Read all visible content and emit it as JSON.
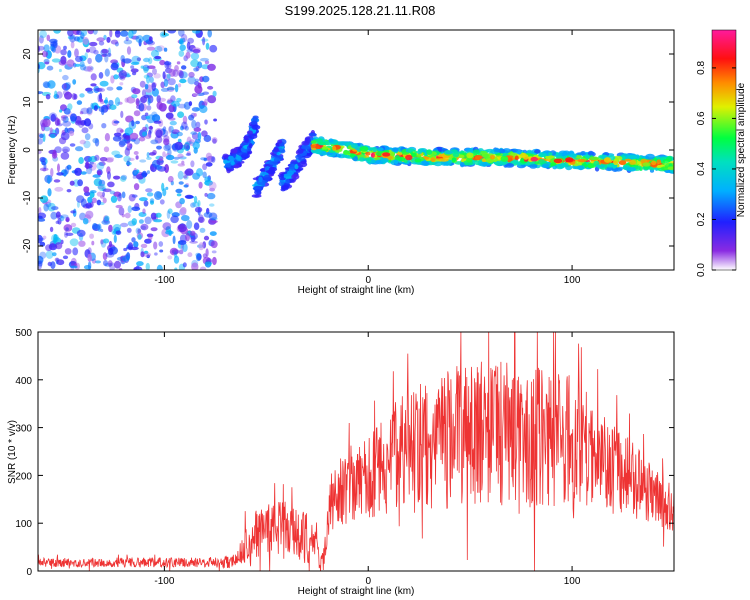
{
  "chart_data": [
    {
      "type": "heatmap",
      "title": "S199.2025.128.21.11.R08",
      "xlabel": "Height of straight line (km)",
      "ylabel": "Frequency (Hz)",
      "xlim": [
        -162,
        150
      ],
      "ylim": [
        -25,
        25
      ],
      "xticks": [
        -100,
        0,
        100
      ],
      "yticks": [
        -20,
        -10,
        0,
        10,
        20
      ],
      "colorbar": {
        "label": "Normalized spectral amplitude",
        "range": [
          0,
          0.95
        ],
        "ticks": [
          0.0,
          0.2,
          0.4,
          0.6,
          0.8
        ]
      },
      "features": [
        {
          "region": "noise",
          "x_range": [
            -162,
            -75
          ],
          "y_range": [
            -25,
            25
          ],
          "amplitude": 0.15
        },
        {
          "region": "streak",
          "x": [
            -70,
            -62,
            -58,
            -55
          ],
          "y": [
            -3,
            -1,
            2,
            6
          ],
          "amplitude": 0.3
        },
        {
          "region": "streak",
          "x": [
            -55,
            -50,
            -46,
            -42
          ],
          "y": [
            -8,
            -5,
            -2,
            1
          ],
          "amplitude": 0.3
        },
        {
          "region": "streak",
          "x": [
            -42,
            -36,
            -32,
            -27
          ],
          "y": [
            -7,
            -4,
            -1,
            2
          ],
          "amplitude": 0.3
        },
        {
          "region": "ridge",
          "x": [
            -27,
            -10,
            0,
            30,
            60,
            90,
            120,
            150
          ],
          "y": [
            1,
            0,
            -1,
            -1.5,
            -1.5,
            -2,
            -2.5,
            -3
          ],
          "amplitude": 0.9
        }
      ]
    },
    {
      "type": "line",
      "xlabel": "Height of straight line (km)",
      "ylabel": "SNR (10 * v/v)",
      "xlim": [
        -162,
        150
      ],
      "ylim": [
        0,
        500
      ],
      "xticks": [
        -100,
        0,
        100
      ],
      "yticks": [
        0,
        100,
        200,
        300,
        400,
        500
      ],
      "color": "#ee3333",
      "envelope": {
        "x": [
          -162,
          -80,
          -65,
          -60,
          -50,
          -40,
          -30,
          -22,
          -18,
          -10,
          0,
          10,
          20,
          30,
          40,
          60,
          80,
          100,
          120,
          140,
          150
        ],
        "mean": [
          18,
          18,
          20,
          60,
          90,
          85,
          70,
          20,
          150,
          180,
          190,
          230,
          250,
          260,
          280,
          290,
          280,
          270,
          220,
          160,
          130
        ],
        "amp": [
          10,
          10,
          15,
          45,
          60,
          60,
          55,
          25,
          70,
          80,
          90,
          110,
          130,
          140,
          150,
          150,
          150,
          140,
          100,
          60,
          50
        ]
      }
    }
  ]
}
